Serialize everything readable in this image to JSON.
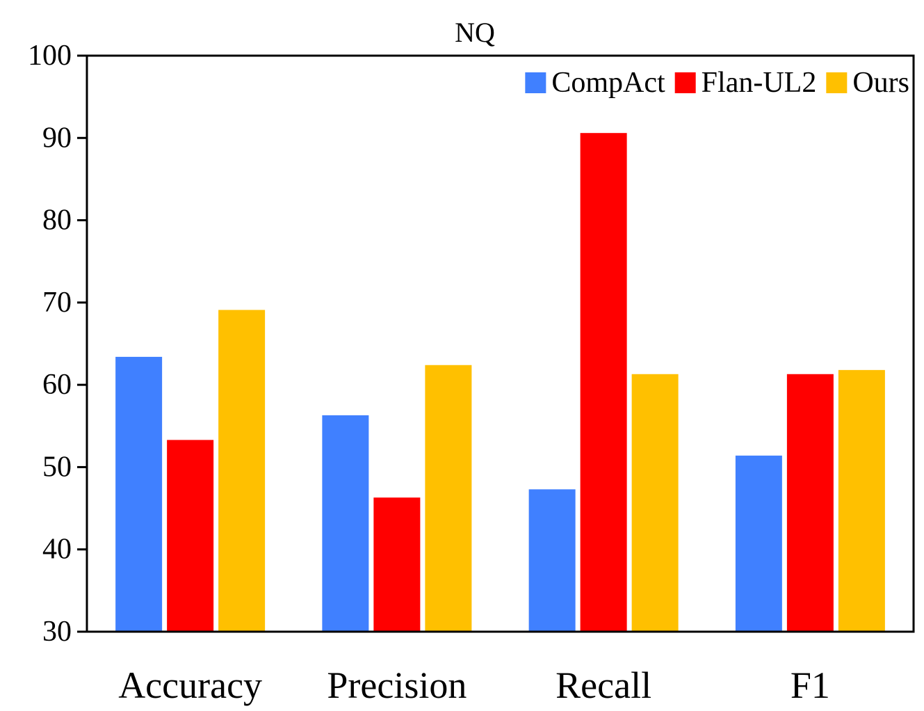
{
  "chart_data": {
    "type": "bar",
    "title": "NQ",
    "xlabel": "",
    "ylabel": "",
    "categories": [
      "Accuracy",
      "Precision",
      "Recall",
      "F1"
    ],
    "ylim": [
      30,
      100
    ],
    "yticks": [
      "30",
      "40",
      "50",
      "60",
      "70",
      "80",
      "90",
      "100"
    ],
    "grid": false,
    "legend_position": "top-right",
    "series": [
      {
        "name": "CompAct",
        "color": "#4080FF",
        "values": [
          63.4,
          56.3,
          47.3,
          51.4
        ]
      },
      {
        "name": "Flan-UL2",
        "color": "#FF0000",
        "values": [
          53.3,
          46.3,
          90.6,
          61.3
        ]
      },
      {
        "name": "Ours",
        "color": "#FFC000",
        "values": [
          69.1,
          62.4,
          61.3,
          61.8
        ]
      }
    ]
  }
}
